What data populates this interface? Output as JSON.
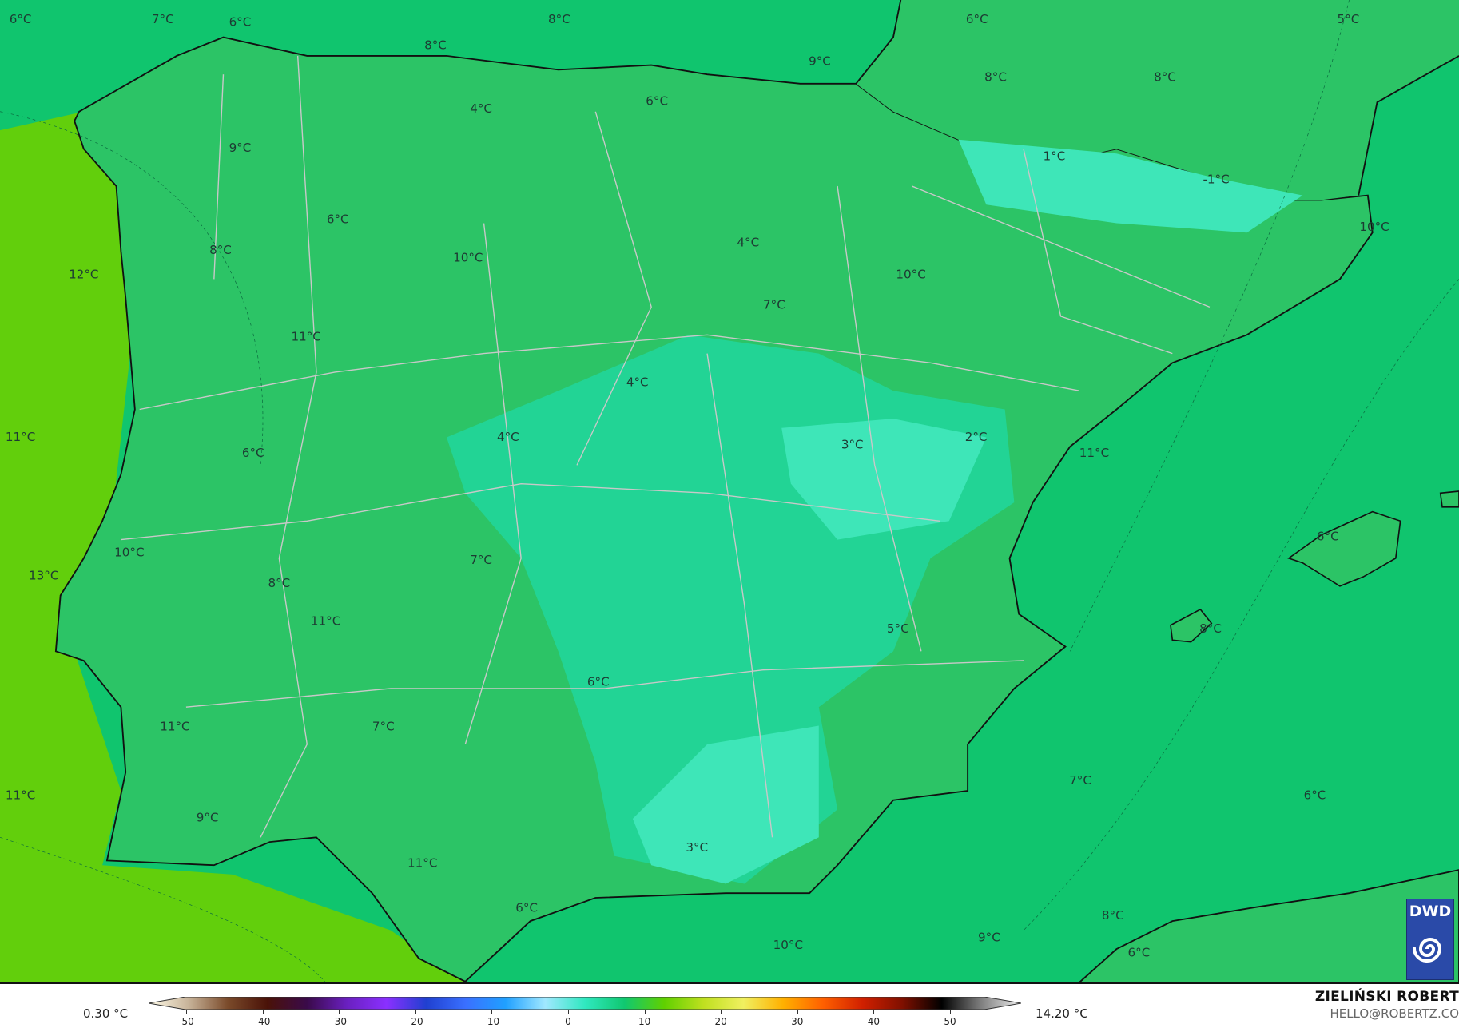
{
  "map": {
    "ocean_west_color": "#62cf0c",
    "med_color": "#10c56e",
    "land_color": "#2cc466",
    "interior_color": "#22d495",
    "cold_color": "#3ee6b8",
    "temperature_labels": [
      "6°C",
      "7°C",
      "6°C",
      "8°C",
      "6°C",
      "5°C",
      "8°C",
      "9°C",
      "8°C",
      "8°C",
      "4°C",
      "6°C",
      "1°C",
      "-1°C",
      "9°C",
      "6°C",
      "8°C",
      "10°C",
      "4°C",
      "10°C",
      "10°C",
      "12°C",
      "7°C",
      "11°C",
      "4°C",
      "11°C",
      "4°C",
      "6°C",
      "3°C",
      "2°C",
      "11°C",
      "6°C",
      "10°C",
      "7°C",
      "13°C",
      "8°C",
      "11°C",
      "5°C",
      "8°C",
      "6°C",
      "11°C",
      "7°C",
      "7°C",
      "11°C",
      "6°C",
      "9°C",
      "3°C",
      "11°C",
      "6°C",
      "8°C",
      "9°C",
      "10°C",
      "6°C"
    ]
  },
  "logo": {
    "text": "DWD",
    "color": "#2a4aa8"
  },
  "legend": {
    "min_label": "0.30 °C",
    "max_label": "14.20 °C",
    "ticks": [
      "-50",
      "-40",
      "-30",
      "-20",
      "-10",
      "0",
      "10",
      "20",
      "30",
      "40",
      "50"
    ],
    "colors": [
      "#fffbe8",
      "#c8b49a",
      "#7a4a2a",
      "#4a1208",
      "#3a0a4a",
      "#6a20c0",
      "#8a30ff",
      "#2040d0",
      "#3a70ff",
      "#20a0ff",
      "#a0e8ff",
      "#30e8c0",
      "#10c870",
      "#60d000",
      "#c0e020",
      "#f0f060",
      "#ffb000",
      "#ff6000",
      "#d02000",
      "#801000",
      "#000000",
      "#808080",
      "#f0f0f0"
    ]
  },
  "credit": {
    "author": "ZIELIŃSKI ROBERT",
    "email": "HELLO@ROBERTZ.CO"
  }
}
